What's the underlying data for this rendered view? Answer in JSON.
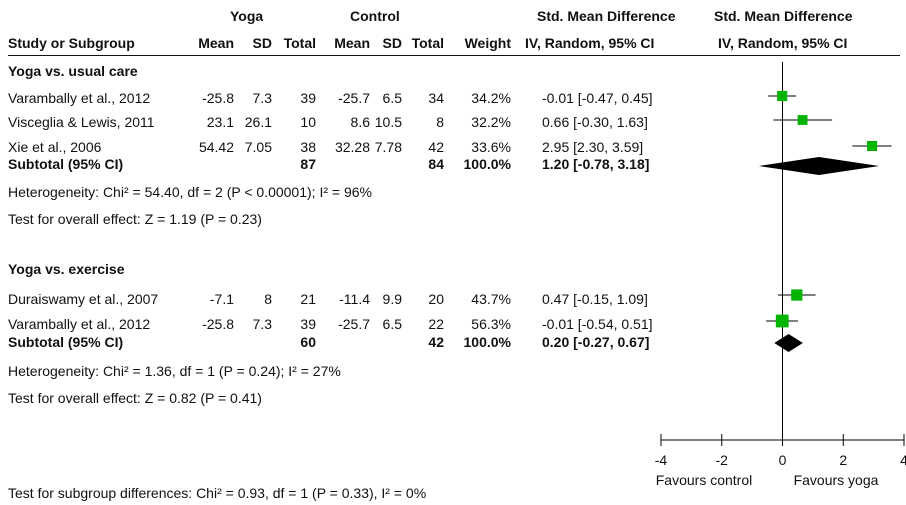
{
  "header": {
    "group_yoga": "Yoga",
    "group_control": "Control",
    "smd_top": "Std. Mean Difference",
    "smd_plot_top": "Std. Mean Difference",
    "study_col": "Study or Subgroup",
    "mean1": "Mean",
    "sd1": "SD",
    "total1": "Total",
    "mean2": "Mean",
    "sd2": "SD",
    "total2": "Total",
    "weight": "Weight",
    "method": "IV, Random, 95% CI",
    "method_plot": "IV, Random, 95% CI"
  },
  "groups": [
    {
      "title": "Yoga vs. usual care",
      "studies": [
        {
          "study": "Varambally et al., 2012",
          "mean1": "-25.8",
          "sd1": "7.3",
          "n1": "39",
          "mean2": "-25.7",
          "sd2": "6.5",
          "n2": "34",
          "weight": "34.2%",
          "ci": "-0.01 [-0.47, 0.45]"
        },
        {
          "study": "Visceglia & Lewis, 2011",
          "mean1": "23.1",
          "sd1": "26.1",
          "n1": "10",
          "mean2": "8.6",
          "sd2": "10.5",
          "n2": "8",
          "weight": "32.2%",
          "ci": "0.66 [-0.30, 1.63]"
        },
        {
          "study": "Xie et al., 2006",
          "mean1": "54.42",
          "sd1": "7.05",
          "n1": "38",
          "mean2": "32.28",
          "sd2": "7.78",
          "n2": "42",
          "weight": "33.6%",
          "ci": "2.95 [2.30, 3.59]"
        }
      ],
      "subtotal": {
        "label": "Subtotal (95% CI)",
        "n1": "87",
        "n2": "84",
        "weight": "100.0%",
        "ci": "1.20 [-0.78, 3.18]"
      },
      "heterogeneity": "Heterogeneity: Chi² = 54.40, df = 2 (P < 0.00001); I² = 96%",
      "overall": "Test for overall effect: Z = 1.19 (P = 0.23)"
    },
    {
      "title": "Yoga vs. exercise",
      "studies": [
        {
          "study": "Duraiswamy et al., 2007",
          "mean1": "-7.1",
          "sd1": "8",
          "n1": "21",
          "mean2": "-11.4",
          "sd2": "9.9",
          "n2": "20",
          "weight": "43.7%",
          "ci": "0.47 [-0.15, 1.09]"
        },
        {
          "study": "Varambally et al., 2012",
          "mean1": "-25.8",
          "sd1": "7.3",
          "n1": "39",
          "mean2": "-25.7",
          "sd2": "6.5",
          "n2": "22",
          "weight": "56.3%",
          "ci": "-0.01 [-0.54, 0.51]"
        }
      ],
      "subtotal": {
        "label": "Subtotal (95% CI)",
        "n1": "60",
        "n2": "42",
        "weight": "100.0%",
        "ci": "0.20 [-0.27, 0.67]"
      },
      "heterogeneity": "Heterogeneity: Chi² = 1.36, df = 1 (P = 0.24); I² = 27%",
      "overall": "Test for overall effect: Z = 0.82 (P = 0.41)"
    }
  ],
  "subgroup_test": "Test for subgroup differences: Chi² = 0.93, df = 1 (P = 0.33), I² = 0%",
  "colors": {
    "marker": "#00b400",
    "diamond": "#000000",
    "line": "#000000"
  },
  "chart_data": {
    "type": "forest",
    "xlim": [
      -4,
      4
    ],
    "xticks": [
      "-4",
      "-2",
      "0",
      "2",
      "4"
    ],
    "xtick_values": [
      -4,
      -2,
      0,
      2,
      4
    ],
    "left_label": "Favours control",
    "right_label": "Favours yoga",
    "studies": [
      {
        "group": 0,
        "row": 0,
        "est": -0.01,
        "lo": -0.47,
        "hi": 0.45,
        "weight": 34.2
      },
      {
        "group": 0,
        "row": 1,
        "est": 0.66,
        "lo": -0.3,
        "hi": 1.63,
        "weight": 32.2
      },
      {
        "group": 0,
        "row": 2,
        "est": 2.95,
        "lo": 2.3,
        "hi": 3.59,
        "weight": 33.6
      },
      {
        "group": 1,
        "row": 0,
        "est": 0.47,
        "lo": -0.15,
        "hi": 1.09,
        "weight": 43.7
      },
      {
        "group": 1,
        "row": 1,
        "est": -0.01,
        "lo": -0.54,
        "hi": 0.51,
        "weight": 56.3
      }
    ],
    "subtotals": [
      {
        "group": 0,
        "est": 1.2,
        "lo": -0.78,
        "hi": 3.18
      },
      {
        "group": 1,
        "est": 0.2,
        "lo": -0.27,
        "hi": 0.67
      }
    ]
  }
}
